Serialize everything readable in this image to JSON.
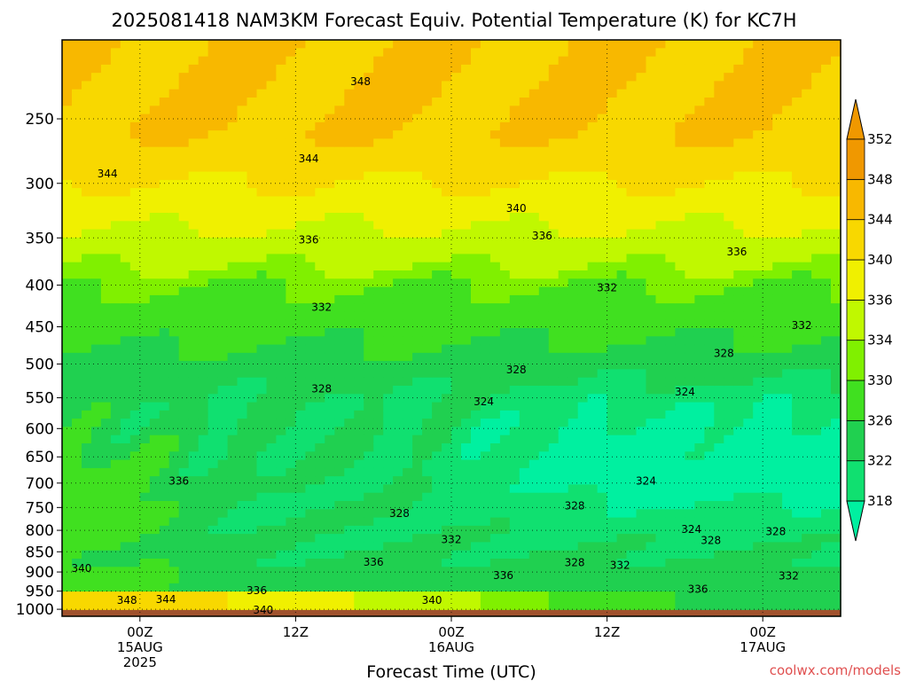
{
  "chart_data": {
    "type": "heatmap",
    "title": "2025081418 NAM3KM Forecast Equiv. Potential Temperature (K) for KC7H",
    "xlabel": "Forecast Time (UTC)",
    "ylabel": "",
    "y_scale": "log-pressure",
    "ylim": [
      1020,
      200
    ],
    "xlim_hours": [
      -6,
      54
    ],
    "grid": true,
    "legend_position": "right",
    "x_ticks": [
      {
        "hour": 0,
        "lines": [
          "00Z",
          "15AUG",
          "2025"
        ]
      },
      {
        "hour": 12,
        "lines": [
          "12Z"
        ]
      },
      {
        "hour": 24,
        "lines": [
          "00Z",
          "16AUG"
        ]
      },
      {
        "hour": 36,
        "lines": [
          "12Z"
        ]
      },
      {
        "hour": 48,
        "lines": [
          "00Z",
          "17AUG"
        ]
      }
    ],
    "y_ticks": [
      250,
      300,
      350,
      400,
      450,
      500,
      550,
      600,
      650,
      700,
      750,
      800,
      850,
      900,
      950,
      1000
    ],
    "colorbar": {
      "levels": [
        318,
        322,
        326,
        330,
        334,
        336,
        340,
        344,
        348,
        352
      ],
      "colors": [
        "#00f0a0",
        "#10e070",
        "#20d050",
        "#40e020",
        "#80f000",
        "#c0f800",
        "#f0f000",
        "#f8d800",
        "#f8b800",
        "#f09800"
      ]
    },
    "contour_labels": [
      {
        "hour": 17,
        "p": 225,
        "text": "348"
      },
      {
        "hour": 13,
        "p": 280,
        "text": "344"
      },
      {
        "hour": -2.5,
        "p": 292,
        "text": "344"
      },
      {
        "hour": 29,
        "p": 322,
        "text": "340"
      },
      {
        "hour": 13,
        "p": 352,
        "text": "336"
      },
      {
        "hour": 31,
        "p": 348,
        "text": "336"
      },
      {
        "hour": 46,
        "p": 364,
        "text": "336"
      },
      {
        "hour": 14,
        "p": 426,
        "text": "332"
      },
      {
        "hour": 36,
        "p": 403,
        "text": "332"
      },
      {
        "hour": 51,
        "p": 448,
        "text": "332"
      },
      {
        "hour": 45,
        "p": 485,
        "text": "328"
      },
      {
        "hour": 29,
        "p": 508,
        "text": "328"
      },
      {
        "hour": 14,
        "p": 536,
        "text": "328"
      },
      {
        "hour": 26.5,
        "p": 556,
        "text": "324"
      },
      {
        "hour": 42,
        "p": 541,
        "text": "324"
      },
      {
        "hour": 3,
        "p": 696,
        "text": "336"
      },
      {
        "hour": 39,
        "p": 696,
        "text": "324"
      },
      {
        "hour": 20,
        "p": 763,
        "text": "328"
      },
      {
        "hour": 33.5,
        "p": 747,
        "text": "328"
      },
      {
        "hour": 24,
        "p": 821,
        "text": "332"
      },
      {
        "hour": 42.5,
        "p": 798,
        "text": "324"
      },
      {
        "hour": 44,
        "p": 823,
        "text": "328"
      },
      {
        "hour": 49,
        "p": 803,
        "text": "328"
      },
      {
        "hour": 18,
        "p": 875,
        "text": "336"
      },
      {
        "hour": 33.5,
        "p": 877,
        "text": "328"
      },
      {
        "hour": 37,
        "p": 883,
        "text": "332"
      },
      {
        "hour": 28,
        "p": 909,
        "text": "336"
      },
      {
        "hour": 50,
        "p": 910,
        "text": "332"
      },
      {
        "hour": -4.5,
        "p": 891,
        "text": "340"
      },
      {
        "hour": 43,
        "p": 945,
        "text": "336"
      },
      {
        "hour": 9,
        "p": 948,
        "text": "336"
      },
      {
        "hour": 22.5,
        "p": 975,
        "text": "340"
      },
      {
        "hour": -1,
        "p": 975,
        "text": "348"
      },
      {
        "hour": 2,
        "p": 973,
        "text": "344"
      },
      {
        "hour": 9.5,
        "p": 1002,
        "text": "340"
      }
    ]
  },
  "watermark": "coolwx.com/models"
}
